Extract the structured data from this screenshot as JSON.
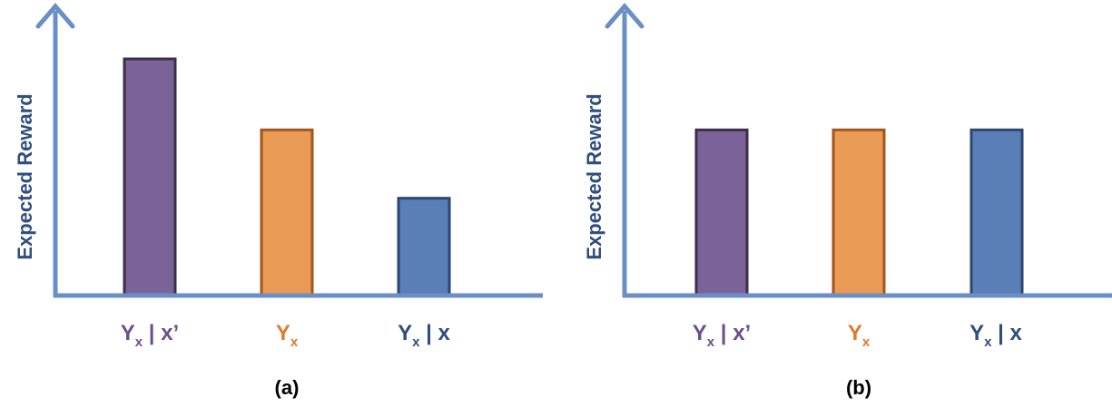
{
  "chart_data": [
    {
      "type": "bar",
      "caption": "(a)",
      "ylabel": "Expected Reward",
      "xlabel": "",
      "categories": [
        {
          "main": "Y",
          "sub": "x",
          "suffix": " | x’"
        },
        {
          "main": "Y",
          "sub": "x",
          "suffix": ""
        },
        {
          "main": "Y",
          "sub": "x",
          "suffix": " | x"
        }
      ],
      "values": [
        0.9,
        0.63,
        0.37
      ],
      "ylim": [
        0,
        1
      ],
      "colors": [
        "#7b639a",
        "#e99a54",
        "#5a7fb8"
      ],
      "edge_colors": [
        "#3c2f4a",
        "#a3561c",
        "#2c4670"
      ],
      "label_colors": [
        "#6c4e8c",
        "#e07a2e",
        "#2f4d7e"
      ],
      "axis_color": "#6a8fc6",
      "grid": false,
      "ticks": false
    },
    {
      "type": "bar",
      "caption": "(b)",
      "ylabel": "Expected Reward",
      "xlabel": "",
      "categories": [
        {
          "main": "Y",
          "sub": "x",
          "suffix": " | x’"
        },
        {
          "main": "Y",
          "sub": "x",
          "suffix": ""
        },
        {
          "main": "Y",
          "sub": "x",
          "suffix": " | x"
        }
      ],
      "values": [
        0.63,
        0.63,
        0.63
      ],
      "ylim": [
        0,
        1
      ],
      "colors": [
        "#7b639a",
        "#e99a54",
        "#5a7fb8"
      ],
      "edge_colors": [
        "#3c2f4a",
        "#a3561c",
        "#2c4670"
      ],
      "label_colors": [
        "#6c4e8c",
        "#e07a2e",
        "#2f4d7e"
      ],
      "axis_color": "#6a8fc6",
      "grid": false,
      "ticks": false
    }
  ]
}
